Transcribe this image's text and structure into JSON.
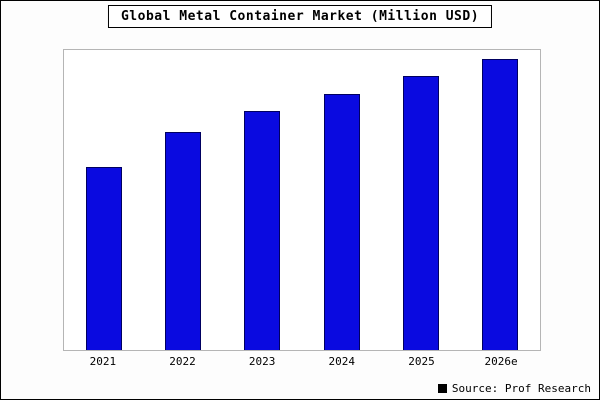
{
  "title": "Global Metal Container Market (Million USD)",
  "source": "Source: Prof Research",
  "chart_data": {
    "type": "bar",
    "title": "Global Metal Container Market (Million USD)",
    "categories": [
      "2021",
      "2022",
      "2023",
      "2024",
      "2025",
      "2026e"
    ],
    "values": [
      63,
      75,
      82,
      88,
      94,
      100
    ],
    "xlabel": "",
    "ylabel": "",
    "ylim": [
      0,
      103
    ],
    "y_axis_labels_visible": false,
    "grid": false,
    "legend": "none",
    "bar_color": "#0a0ae0",
    "bar_border_color": "#000060"
  }
}
